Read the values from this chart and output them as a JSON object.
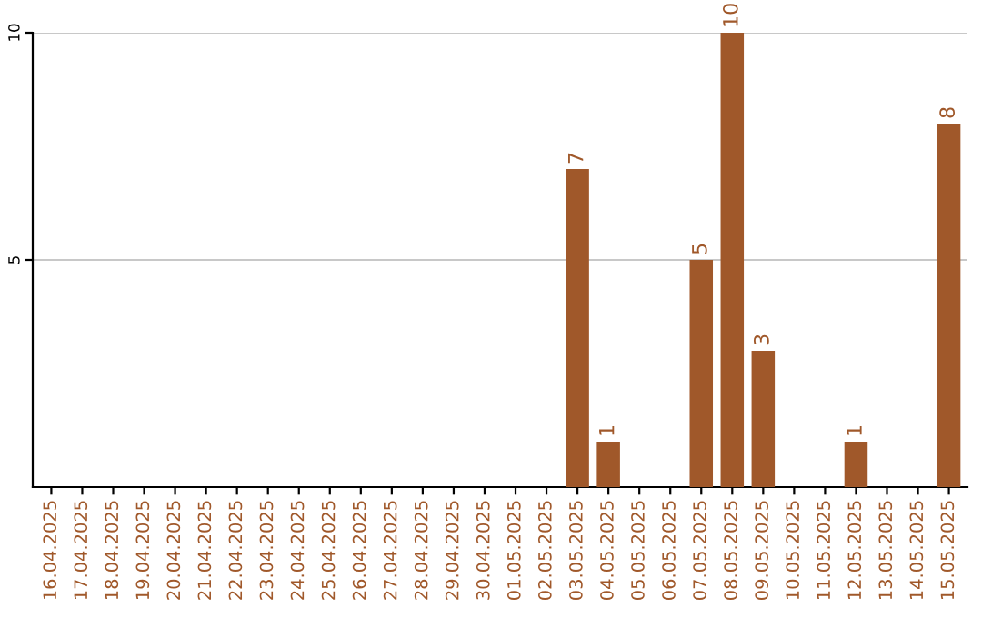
{
  "chart_data": {
    "type": "bar",
    "categories": [
      "16.04.2025",
      "17.04.2025",
      "18.04.2025",
      "19.04.2025",
      "20.04.2025",
      "21.04.2025",
      "22.04.2025",
      "23.04.2025",
      "24.04.2025",
      "25.04.2025",
      "26.04.2025",
      "27.04.2025",
      "28.04.2025",
      "29.04.2025",
      "30.04.2025",
      "01.05.2025",
      "02.05.2025",
      "03.05.2025",
      "04.05.2025",
      "05.05.2025",
      "06.05.2025",
      "07.05.2025",
      "08.05.2025",
      "09.05.2025",
      "10.05.2025",
      "11.05.2025",
      "12.05.2025",
      "13.05.2025",
      "14.05.2025",
      "15.05.2025"
    ],
    "values": [
      0,
      0,
      0,
      0,
      0,
      0,
      0,
      0,
      0,
      0,
      0,
      0,
      0,
      0,
      0,
      0,
      0,
      7,
      1,
      0,
      0,
      5,
      10,
      3,
      0,
      0,
      1,
      0,
      0,
      8
    ],
    "value_labels": [
      null,
      null,
      null,
      null,
      null,
      null,
      null,
      null,
      null,
      null,
      null,
      null,
      null,
      null,
      null,
      null,
      null,
      "7",
      "1",
      null,
      null,
      "5",
      "10",
      "3",
      null,
      null,
      "1",
      null,
      null,
      "8"
    ],
    "color": "#a0582a",
    "ylim": [
      0,
      10
    ],
    "yticks": [
      5,
      10
    ],
    "grid": "y",
    "legend": false
  }
}
